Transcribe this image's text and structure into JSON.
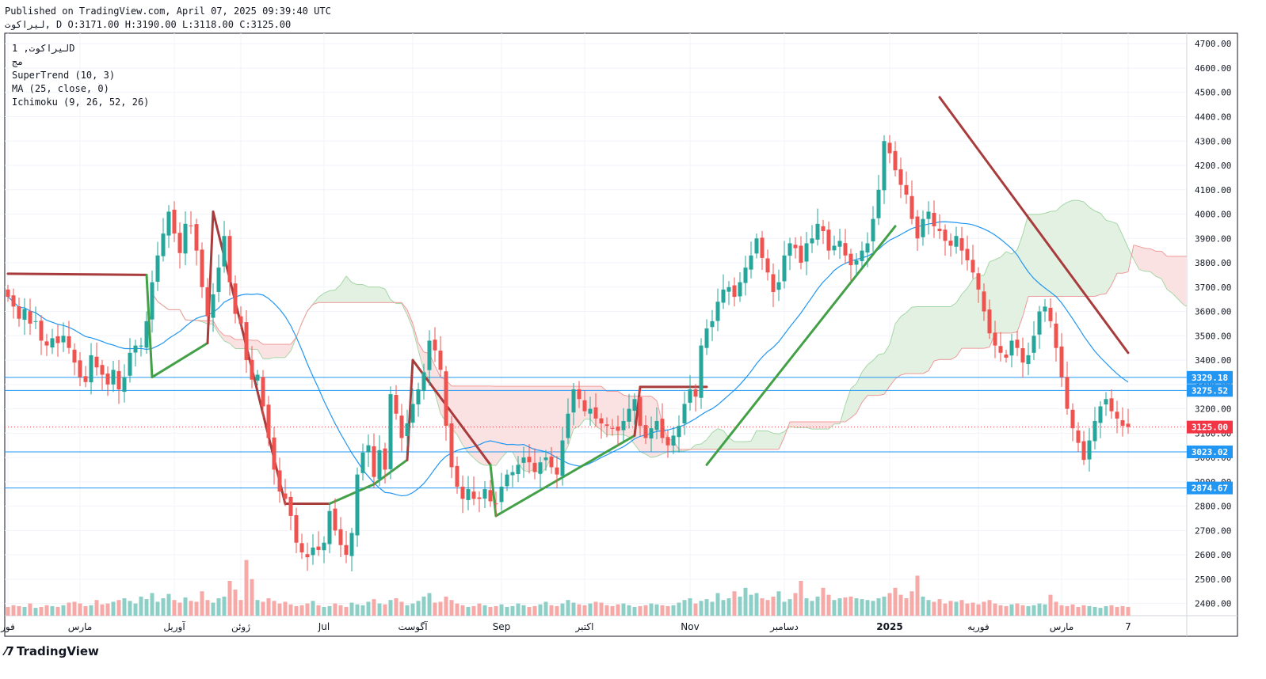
{
  "header": {
    "published": "Published on TradingView.com, April 07, 2025 09:39:40 UTC",
    "ohlc": "لیراکوت, D O:3171.00 H:3190.00 L:3118.00 C:3125.00"
  },
  "legend": {
    "symbol": "لیراکوت, 1D",
    "sub": "مج",
    "indicators": [
      "SuperTrend (10, 3)",
      "MA (25, close, 0)",
      "Ichimoku (9, 26, 52, 26)"
    ]
  },
  "branding": {
    "logo_text": "TradingView",
    "logo_icon": "tradingview-logo-icon"
  },
  "colors": {
    "up": "#26a69a",
    "down": "#ef5350",
    "supertrend_up": "#43a047",
    "supertrend_down": "#a83c3c",
    "ma": "#2196f3",
    "hline": "#2196f3",
    "last_price": "#f23645",
    "cloud_green": "#e2f1e1",
    "cloud_red": "#fbe2e2"
  },
  "chart_data": {
    "type": "candlestick",
    "timeframe": "1D",
    "yticks": [
      2400,
      2500,
      2600,
      2700,
      2800,
      2900,
      3000,
      3100,
      3200,
      3300,
      3400,
      3500,
      3600,
      3700,
      3800,
      3900,
      4000,
      4100,
      4200,
      4300,
      4400,
      4500,
      4600,
      4700
    ],
    "ylim": [
      2350,
      4730
    ],
    "xticks": [
      {
        "label": "فور",
        "x": 0
      },
      {
        "label": "مارس",
        "x": 13
      },
      {
        "label": "آوریل",
        "x": 30
      },
      {
        "label": "ژوئن",
        "x": 42
      },
      {
        "label": "Jul",
        "x": 57
      },
      {
        "label": "آگوست",
        "x": 73
      },
      {
        "label": "Sep",
        "x": 89
      },
      {
        "label": "اکتبر",
        "x": 104
      },
      {
        "label": "Nov",
        "x": 123
      },
      {
        "label": "دسامبر",
        "x": 140
      },
      {
        "label": "2025",
        "x": 159
      },
      {
        "label": "فوریه",
        "x": 175
      },
      {
        "label": "مارس",
        "x": 190
      },
      {
        "label": "7",
        "x": 202
      }
    ],
    "xlim": [
      0,
      212
    ],
    "last_index": 202,
    "close": [
      3660,
      3620,
      3570,
      3610,
      3550,
      3560,
      3480,
      3460,
      3490,
      3470,
      3500,
      3450,
      3390,
      3330,
      3310,
      3420,
      3370,
      3340,
      3300,
      3360,
      3280,
      3330,
      3430,
      3460,
      3460,
      3560,
      3720,
      3830,
      3920,
      4010,
      3920,
      3840,
      3960,
      3950,
      3850,
      3700,
      3580,
      3670,
      3780,
      3910,
      3720,
      3590,
      3550,
      3400,
      3320,
      3340,
      3210,
      3080,
      2950,
      2860,
      2830,
      2760,
      2650,
      2610,
      2590,
      2630,
      2620,
      2650,
      2780,
      2700,
      2640,
      2600,
      2690,
      2930,
      3020,
      3050,
      2920,
      3030,
      2950,
      3260,
      3180,
      3080,
      3140,
      3220,
      3280,
      3350,
      3480,
      3440,
      3360,
      3130,
      2960,
      2880,
      2830,
      2870,
      2830,
      2830,
      2870,
      2820,
      2810,
      2880,
      2930,
      2940,
      2970,
      3000,
      2980,
      2940,
      2980,
      3000,
      2960,
      2930,
      3070,
      3180,
      3280,
      3240,
      3190,
      3200,
      3160,
      3140,
      3130,
      3120,
      3110,
      3150,
      3200,
      3240,
      3130,
      3080,
      3120,
      3150,
      3080,
      3050,
      3090,
      3130,
      3220,
      3280,
      3250,
      3460,
      3530,
      3560,
      3640,
      3690,
      3700,
      3660,
      3720,
      3780,
      3830,
      3900,
      3820,
      3760,
      3680,
      3720,
      3830,
      3880,
      3860,
      3800,
      3880,
      3900,
      3960,
      3930,
      3850,
      3870,
      3890,
      3830,
      3790,
      3810,
      3850,
      3880,
      3980,
      4100,
      4300,
      4250,
      4180,
      4120,
      4080,
      3980,
      3900,
      3980,
      4010,
      3950,
      3930,
      3890,
      3870,
      3910,
      3850,
      3810,
      3760,
      3690,
      3600,
      3510,
      3460,
      3430,
      3410,
      3480,
      3450,
      3390,
      3420,
      3500,
      3600,
      3620,
      3560,
      3450,
      3330,
      3200,
      3120,
      3060,
      2990,
      3070,
      3150,
      3210,
      3240,
      3190,
      3160,
      3130,
      3125
    ],
    "volume_scale": [
      0.5,
      0.6,
      0.55,
      0.5,
      0.7,
      0.45,
      0.5,
      0.6,
      0.55,
      0.5,
      0.6,
      0.75,
      0.8,
      0.7,
      0.55,
      0.6,
      0.9,
      0.65,
      0.7,
      0.8,
      0.9,
      1.0,
      0.85,
      0.7,
      1.1,
      0.95,
      1.3,
      0.8,
      1.0,
      1.25,
      0.9,
      0.75,
      1.05,
      0.85,
      0.8,
      1.4,
      0.9,
      0.75,
      1.0,
      1.1,
      2.0,
      1.5,
      0.9,
      3.2,
      2.1,
      0.9,
      0.8,
      1.0,
      0.85,
      0.7,
      0.8,
      0.65,
      0.55,
      0.6,
      0.7,
      0.85,
      0.6,
      0.5,
      0.55,
      0.7,
      0.6,
      0.5,
      0.75,
      0.65,
      0.6,
      0.8,
      0.95,
      0.7,
      0.65,
      0.9,
      1.0,
      0.8,
      0.6,
      0.7,
      0.85,
      1.1,
      1.3,
      0.75,
      0.8,
      1.1,
      0.9,
      0.7,
      0.6,
      0.5,
      0.55,
      0.7,
      0.6,
      0.5,
      0.55,
      0.65,
      0.5,
      0.55,
      0.7,
      0.6,
      0.5,
      0.55,
      0.65,
      0.8,
      0.6,
      0.55,
      0.7,
      0.9,
      0.75,
      0.65,
      0.6,
      0.7,
      0.8,
      0.75,
      0.6,
      0.55,
      0.65,
      0.7,
      0.6,
      0.5,
      0.55,
      0.6,
      0.7,
      0.65,
      0.6,
      0.55,
      0.6,
      0.75,
      0.9,
      1.0,
      0.7,
      0.85,
      0.95,
      0.8,
      1.3,
      0.9,
      1.0,
      1.4,
      1.1,
      1.6,
      1.2,
      1.3,
      1.0,
      0.9,
      1.1,
      1.4,
      0.8,
      0.95,
      1.3,
      2.0,
      1.0,
      0.85,
      1.1,
      1.6,
      1.2,
      0.9,
      1.0,
      1.05,
      1.1,
      1.0,
      0.95,
      0.9,
      0.85,
      1.0,
      1.1,
      1.3,
      1.6,
      1.2,
      1.0,
      1.4,
      2.3,
      1.1,
      0.9,
      0.8,
      0.95,
      0.7,
      0.85,
      0.8,
      0.9,
      0.7,
      0.75,
      0.65,
      0.8,
      0.9,
      0.7,
      0.6,
      0.55,
      0.65,
      0.7,
      0.6,
      0.55,
      0.6,
      0.7,
      0.65,
      1.2,
      0.8,
      0.6,
      0.55,
      0.65,
      0.5,
      0.6,
      0.55,
      0.5,
      0.45,
      0.55,
      0.6,
      0.5,
      0.55,
      0.5,
      0.6,
      0.55,
      0.5
    ],
    "supertrend": [
      {
        "x0": 0,
        "y0": 3755,
        "x1": 25,
        "y1": 3750,
        "dir": "down"
      },
      {
        "x0": 25,
        "y0": 3750,
        "x1": 26,
        "y1": 3330,
        "dir": "up"
      },
      {
        "x0": 26,
        "y0": 3330,
        "x1": 36,
        "y1": 3470,
        "dir": "up"
      },
      {
        "x0": 36,
        "y0": 3470,
        "x1": 37,
        "y1": 4010,
        "dir": "down"
      },
      {
        "x0": 37,
        "y0": 4010,
        "x1": 50,
        "y1": 2810,
        "dir": "down"
      },
      {
        "x0": 50,
        "y0": 2810,
        "x1": 58,
        "y1": 2810,
        "dir": "down"
      },
      {
        "x0": 58,
        "y0": 2810,
        "x1": 66,
        "y1": 2890,
        "dir": "up"
      },
      {
        "x0": 66,
        "y0": 2890,
        "x1": 72,
        "y1": 2990,
        "dir": "up"
      },
      {
        "x0": 72,
        "y0": 2990,
        "x1": 73,
        "y1": 3400,
        "dir": "down"
      },
      {
        "x0": 73,
        "y0": 3400,
        "x1": 87,
        "y1": 2970,
        "dir": "down"
      },
      {
        "x0": 87,
        "y0": 2970,
        "x1": 88,
        "y1": 2760,
        "dir": "up"
      },
      {
        "x0": 88,
        "y0": 2760,
        "x1": 113,
        "y1": 3090,
        "dir": "up"
      },
      {
        "x0": 113,
        "y0": 3090,
        "x1": 114,
        "y1": 3290,
        "dir": "down"
      },
      {
        "x0": 114,
        "y0": 3290,
        "x1": 126,
        "y1": 3290,
        "dir": "down"
      },
      {
        "x0": 126,
        "y0": 2970,
        "x1": 160,
        "y1": 3950,
        "dir": "up"
      },
      {
        "x0": 168,
        "y0": 4480,
        "x1": 202,
        "y1": 3430,
        "dir": "down"
      }
    ],
    "hlines": [
      {
        "price": 3329.18,
        "label": "3329.18"
      },
      {
        "price": 3275.52,
        "label": "3275.52"
      },
      {
        "price": 3023.02,
        "label": "3023.02"
      },
      {
        "price": 2874.67,
        "label": "2874.67"
      }
    ],
    "last_price": {
      "price": 3125.0,
      "label": "3125.00"
    }
  }
}
